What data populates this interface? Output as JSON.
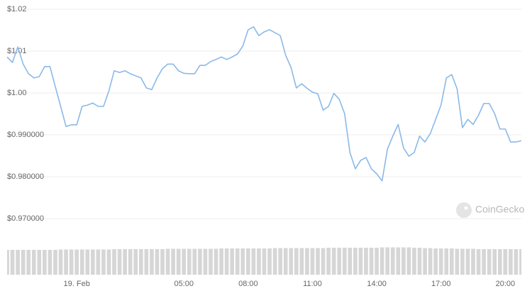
{
  "chart_data": [
    {
      "type": "line",
      "color": "#8bb9e8",
      "grid": true,
      "xlim": [
        -3.25,
        20.75
      ],
      "xticks": [
        {
          "value": 0,
          "label": "19. Feb"
        },
        {
          "value": 5,
          "label": "05:00"
        },
        {
          "value": 8,
          "label": "08:00"
        },
        {
          "value": 11,
          "label": "11:00"
        },
        {
          "value": 14,
          "label": "14:00"
        },
        {
          "value": 17,
          "label": "17:00"
        },
        {
          "value": 20,
          "label": "20:00"
        }
      ],
      "ylim": [
        0.97,
        1.02
      ],
      "yticks": [
        {
          "value": 1.02,
          "label": "$1.02"
        },
        {
          "value": 1.01,
          "label": "$1.01"
        },
        {
          "value": 1.0,
          "label": "$1.00"
        },
        {
          "value": 0.99,
          "label": "$0.990000"
        },
        {
          "value": 0.98,
          "label": "$0.980000"
        },
        {
          "value": 0.97,
          "label": "$0.970000"
        }
      ],
      "x": [
        -3.25,
        -3,
        -2.75,
        -2.5,
        -2.25,
        -2,
        -1.75,
        -1.5,
        -1.25,
        -1,
        -0.75,
        -0.5,
        -0.25,
        0,
        0.25,
        0.5,
        0.75,
        1,
        1.25,
        1.5,
        1.75,
        2,
        2.25,
        2.5,
        2.75,
        3,
        3.25,
        3.5,
        3.75,
        4,
        4.25,
        4.5,
        4.75,
        5,
        5.25,
        5.5,
        5.75,
        6,
        6.25,
        6.5,
        6.75,
        7,
        7.25,
        7.5,
        7.75,
        8,
        8.25,
        8.5,
        8.75,
        9,
        9.25,
        9.5,
        9.75,
        10,
        10.25,
        10.5,
        10.75,
        11,
        11.25,
        11.5,
        11.75,
        12,
        12.25,
        12.5,
        12.75,
        13,
        13.25,
        13.5,
        13.75,
        14,
        14.25,
        14.5,
        14.75,
        15,
        15.25,
        15.5,
        15.75,
        16,
        16.25,
        16.5,
        16.75,
        17,
        17.25,
        17.5,
        17.75,
        18,
        18.25,
        18.5,
        18.75,
        19,
        19.25,
        19.5,
        19.75,
        20,
        20.25,
        20.5,
        20.75
      ],
      "values": [
        1.0086,
        1.0073,
        1.011,
        1.0069,
        1.0046,
        1.0036,
        1.0039,
        1.0063,
        1.0063,
        1.0015,
        0.9968,
        0.992,
        0.9924,
        0.9924,
        0.9968,
        0.9971,
        0.9976,
        0.9968,
        0.9968,
        1.0005,
        1.0053,
        1.0049,
        1.0053,
        1.0046,
        1.0041,
        1.0036,
        1.0012,
        1.0008,
        1.0036,
        1.0058,
        1.0069,
        1.0069,
        1.0053,
        1.0047,
        1.0046,
        1.0046,
        1.0066,
        1.0066,
        1.0075,
        1.008,
        1.0086,
        1.008,
        1.0086,
        1.0093,
        1.0112,
        1.0151,
        1.0158,
        1.0137,
        1.0146,
        1.0151,
        1.0144,
        1.0137,
        1.009,
        1.0061,
        1.0012,
        1.0022,
        1.0011,
        1.0002,
        0.9998,
        0.9959,
        0.9968,
        0.9999,
        0.9985,
        0.9951,
        0.9858,
        0.9819,
        0.9839,
        0.9846,
        0.9819,
        0.9807,
        0.979,
        0.9866,
        0.9897,
        0.9925,
        0.9869,
        0.9849,
        0.9858,
        0.9897,
        0.9883,
        0.9903,
        0.9937,
        0.9971,
        1.0036,
        1.0044,
        1.001,
        0.9917,
        0.9937,
        0.9925,
        0.9947,
        0.9975,
        0.9975,
        0.9951,
        0.9914,
        0.9914,
        0.9883,
        0.9883,
        0.9886
      ]
    },
    {
      "type": "bar",
      "color": "#d6d6d6",
      "xlim": [
        -3.25,
        20.75
      ],
      "ylim": [
        0,
        40
      ],
      "x": [
        -3.25,
        -3,
        -2.75,
        -2.5,
        -2.25,
        -2,
        -1.75,
        -1.5,
        -1.25,
        -1,
        -0.75,
        -0.5,
        -0.25,
        0,
        0.25,
        0.5,
        0.75,
        1,
        1.25,
        1.5,
        1.75,
        2,
        2.25,
        2.5,
        2.75,
        3,
        3.25,
        3.5,
        3.75,
        4,
        4.25,
        4.5,
        4.75,
        5,
        5.25,
        5.5,
        5.75,
        6,
        6.25,
        6.5,
        6.75,
        7,
        7.25,
        7.5,
        7.75,
        8,
        8.25,
        8.5,
        8.75,
        9,
        9.25,
        9.5,
        9.75,
        10,
        10.25,
        10.5,
        10.75,
        11,
        11.25,
        11.5,
        11.75,
        12,
        12.25,
        12.5,
        12.75,
        13,
        13.25,
        13.5,
        13.75,
        14,
        14.25,
        14.5,
        14.75,
        15,
        15.25,
        15.5,
        15.75,
        16,
        16.25,
        16.5,
        16.75,
        17,
        17.25,
        17.5,
        17.75,
        18,
        18.25,
        18.5,
        18.75,
        19,
        19.25,
        19.5,
        19.75,
        20,
        20.25,
        20.5,
        20.75
      ],
      "values": [
        35,
        35,
        35,
        35,
        35,
        35,
        35,
        35,
        35,
        35,
        35.5,
        35.5,
        35.5,
        35.5,
        35.5,
        35.5,
        35.5,
        35.5,
        35.5,
        35.5,
        36,
        36,
        36,
        36,
        36,
        36,
        36,
        36,
        36,
        36,
        36.5,
        36.5,
        36.5,
        36.5,
        36.5,
        36.5,
        36.5,
        36.5,
        36.5,
        36.5,
        37,
        37,
        37,
        37,
        37,
        37,
        37,
        37,
        37,
        37,
        37.5,
        37.5,
        37.5,
        37.5,
        37.5,
        37.5,
        37.5,
        37.5,
        37.5,
        37.5,
        38,
        38,
        38,
        38,
        38,
        38,
        38,
        38,
        38,
        38,
        38.5,
        38.5,
        38.5,
        38.5,
        38.5,
        38.5,
        38,
        38,
        37.5,
        37.5,
        37,
        37,
        37,
        37,
        36.5,
        36.5,
        36.5,
        36.5,
        36,
        36,
        36,
        36,
        36,
        36,
        36,
        36,
        36
      ]
    }
  ],
  "watermark": "CoinGecko"
}
